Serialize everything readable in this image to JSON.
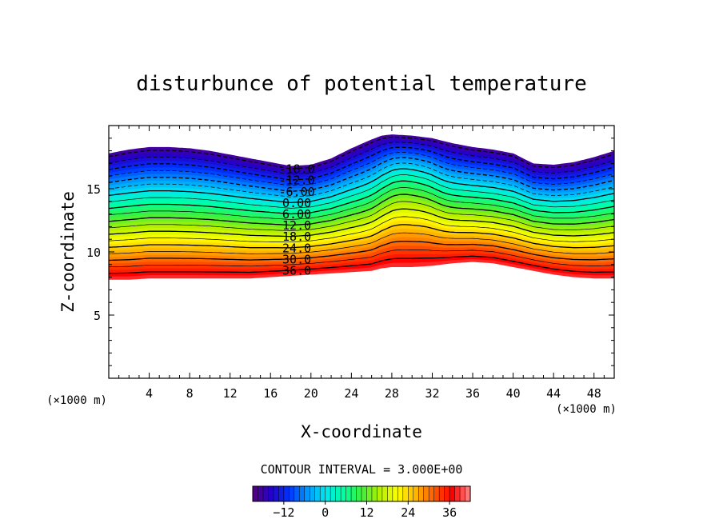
{
  "chart_data": {
    "type": "contour",
    "title": "disturbunce of potential temperature",
    "xlabel": "X-coordinate",
    "ylabel": "Z-coordinate",
    "x_unit_label": "(×1000 m)",
    "y_unit_label": "(×1000 m)",
    "xlim": [
      0,
      50
    ],
    "ylim": [
      0,
      20
    ],
    "x_ticks": [
      4,
      8,
      12,
      16,
      20,
      24,
      28,
      32,
      36,
      40,
      44,
      48
    ],
    "y_ticks": [
      5,
      10,
      15
    ],
    "contour_interval_text": "CONTOUR INTERVAL = 3.000E+00",
    "contour_interval": 3.0,
    "contour_levels": [
      -18,
      -15,
      -12,
      -9,
      -6,
      -3,
      0,
      3,
      6,
      9,
      12,
      15,
      18,
      21,
      24,
      27,
      30,
      33,
      36,
      39
    ],
    "contour_labels": [
      {
        "text": "-18.0",
        "level": -18
      },
      {
        "text": "-12.0",
        "level": -12
      },
      {
        "text": "-6.00",
        "level": -6
      },
      {
        "text": "0.00",
        "level": 0
      },
      {
        "text": "6.00",
        "level": 6
      },
      {
        "text": "12.0",
        "level": 12
      },
      {
        "text": "18.0",
        "level": 18
      },
      {
        "text": "24.0",
        "level": 24
      },
      {
        "text": "30.0",
        "level": 30
      },
      {
        "text": "36.0",
        "level": 36
      }
    ],
    "field": {
      "x": [
        0,
        2,
        4,
        6,
        8,
        10,
        12,
        14,
        16,
        18,
        20,
        22,
        24,
        26,
        27,
        28,
        30,
        32,
        33,
        34,
        36,
        38,
        40,
        42,
        44,
        46,
        48,
        50
      ],
      "top_height": [
        17.8,
        18.1,
        18.3,
        18.3,
        18.2,
        18.0,
        17.7,
        17.4,
        17.1,
        16.8,
        16.9,
        17.4,
        18.2,
        18.9,
        19.2,
        19.3,
        19.2,
        19.0,
        18.8,
        18.6,
        18.3,
        18.1,
        17.8,
        17.0,
        16.9,
        17.1,
        17.5,
        18.0
      ],
      "bottom_height": [
        7.8,
        7.8,
        7.9,
        7.9,
        7.9,
        7.9,
        7.9,
        7.9,
        8.0,
        8.1,
        8.2,
        8.3,
        8.4,
        8.5,
        8.7,
        8.8,
        8.8,
        8.9,
        9.0,
        9.1,
        9.2,
        9.1,
        8.8,
        8.5,
        8.2,
        8.0,
        7.9,
        7.9
      ],
      "max_value": 39,
      "min_value": -19.5,
      "value_range_at_top": -19.5,
      "value_range_at_bottom": 39
    },
    "colorbar": {
      "min": -21,
      "max": 42,
      "tick_values": [
        -12,
        0,
        12,
        24,
        36
      ],
      "tick_labels": [
        "−12",
        "0",
        "12",
        "24",
        "36"
      ],
      "placement": "bottom"
    },
    "colormap": [
      "#5a0082",
      "#2400c8",
      "#0032ff",
      "#0096ff",
      "#00e6f0",
      "#00ffa0",
      "#3cf03c",
      "#b4f000",
      "#ffff00",
      "#ffb400",
      "#ff5a00",
      "#ff0000",
      "#ff8a8a"
    ],
    "grid": false,
    "legend": "none"
  }
}
